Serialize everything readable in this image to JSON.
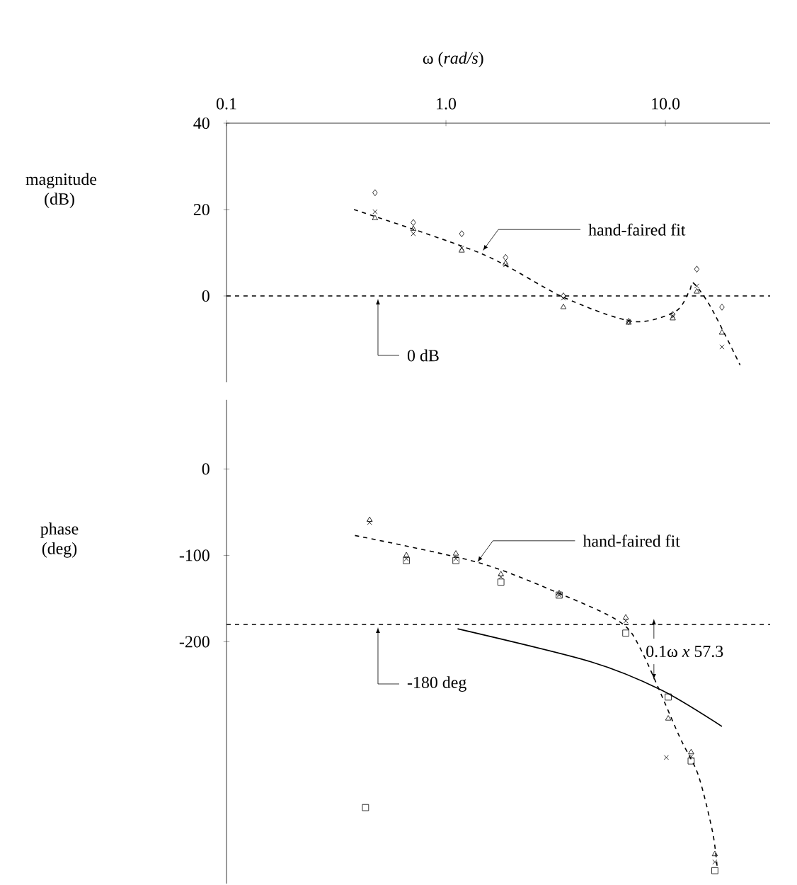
{
  "chart_data": [
    {
      "type": "scatter",
      "xlabel": "ω (*rad/s*)",
      "ylabel": "magnitude (dB)",
      "log": "x",
      "xlim": [
        0.1,
        30
      ],
      "ylim": [
        -20,
        40
      ],
      "xticks": [
        0.1,
        {
          "value": 1,
          "label": "1.0"
        },
        {
          "value": 10,
          "label": "10.0"
        }
      ],
      "yticks": [
        0,
        20,
        40
      ],
      "series": [
        {
          "marker": "diamond",
          "color": "#000000",
          "x": [
            0.475,
            0.71,
            1.18,
            1.87,
            3.43,
            6.8,
            10.8,
            13.9,
            18.1
          ],
          "values": [
            23.9,
            17.0,
            14.4,
            8.9,
            0,
            -5.9,
            -4.3,
            6.2,
            -2.6
          ]
        },
        {
          "marker": "cross",
          "color": "#000000",
          "x": [
            0.475,
            0.71,
            1.18,
            1.87,
            3.43,
            6.8,
            10.8,
            13.9,
            18.1
          ],
          "values": [
            19.5,
            14.4,
            11.1,
            7.2,
            -0.5,
            -5.9,
            -4.6,
            2.3,
            -11.8
          ]
        },
        {
          "marker": "triangle",
          "color": "#000000",
          "x": [
            0.475,
            0.71,
            1.18,
            1.87,
            3.43,
            6.8,
            10.8,
            13.9,
            18.1
          ],
          "values": [
            18.0,
            15.5,
            10.5,
            7.5,
            -2.6,
            -6.2,
            -5.2,
            1.0,
            -8.5
          ]
        },
        {
          "type": "line",
          "marker": "none",
          "line_style": "dashed",
          "color": "#000000",
          "x": [
            0.381,
            1.45,
            3.43,
            7.1,
            11.1,
            12.9,
            13.4,
            16.1,
            21.9
          ],
          "values": [
            20,
            9.8,
            -0.3,
            -5.9,
            -3.6,
            1.3,
            3,
            -2.6,
            -16
          ]
        }
      ],
      "ref_lines": [
        {
          "axis": "y",
          "value": 0,
          "label": "0 dB",
          "line_style": "dashed"
        }
      ],
      "annotations": [
        {
          "text": "hand-faired fit",
          "x": 1.45,
          "y": 9.8
        }
      ]
    },
    {
      "type": "scatter",
      "ylabel": "phase (deg)",
      "log": "x",
      "xlim": [
        0.1,
        30
      ],
      "ylim": [
        -480,
        80
      ],
      "yticks": [
        0,
        -100,
        -200
      ],
      "tick_labels": "y",
      "series": [
        {
          "marker": "square",
          "color": "#000000",
          "x": [
            0.43,
            0.66,
            1.11,
            1.78,
            3.28,
            6.6,
            10.3,
            13.1,
            16.8
          ],
          "values": [
            -392,
            -106,
            -106,
            -131,
            -146,
            -190,
            -264,
            -338,
            -465
          ]
        },
        {
          "marker": "triangle",
          "color": "#000000",
          "x": [
            0.449,
            0.66,
            1.11,
            1.78,
            3.28,
            6.6,
            10.3,
            13.1,
            16.8
          ],
          "values": [
            -59,
            -100,
            -98,
            -122,
            -144,
            -172,
            -289,
            -328,
            -446
          ]
        },
        {
          "marker": "cross",
          "color": "#000000",
          "x": [
            0.449,
            0.66,
            1.11,
            1.78,
            3.28,
            6.6,
            10.1,
            13.1,
            16.8
          ],
          "values": [
            -62,
            -104,
            -104,
            -125,
            -146,
            -176,
            -334,
            -333,
            -455
          ]
        },
        {
          "type": "line",
          "marker": "none",
          "line_style": "dashed",
          "color": "#000000",
          "x": [
            0.385,
            1.39,
            3.28,
            6.2,
            7.8,
            11.6,
            14.1,
            16.4,
            17.2
          ],
          "values": [
            -77,
            -108,
            -144,
            -177,
            -211,
            -310,
            -354,
            -420,
            -460
          ]
        },
        {
          "type": "line",
          "marker": "none",
          "line_style": "solid",
          "color": "#000000",
          "x": [
            1.13,
            4.55,
            9.6,
            18.1
          ],
          "values": [
            -185,
            -223,
            -256,
            -298
          ]
        }
      ],
      "ref_lines": [
        {
          "axis": "y",
          "value": -180,
          "label": "-180 deg",
          "line_style": "dashed"
        }
      ],
      "annotations": [
        {
          "text": "hand-faired fit",
          "x": 1.37,
          "y": -111
        },
        "0.1ω *x* 57.3"
      ]
    }
  ]
}
